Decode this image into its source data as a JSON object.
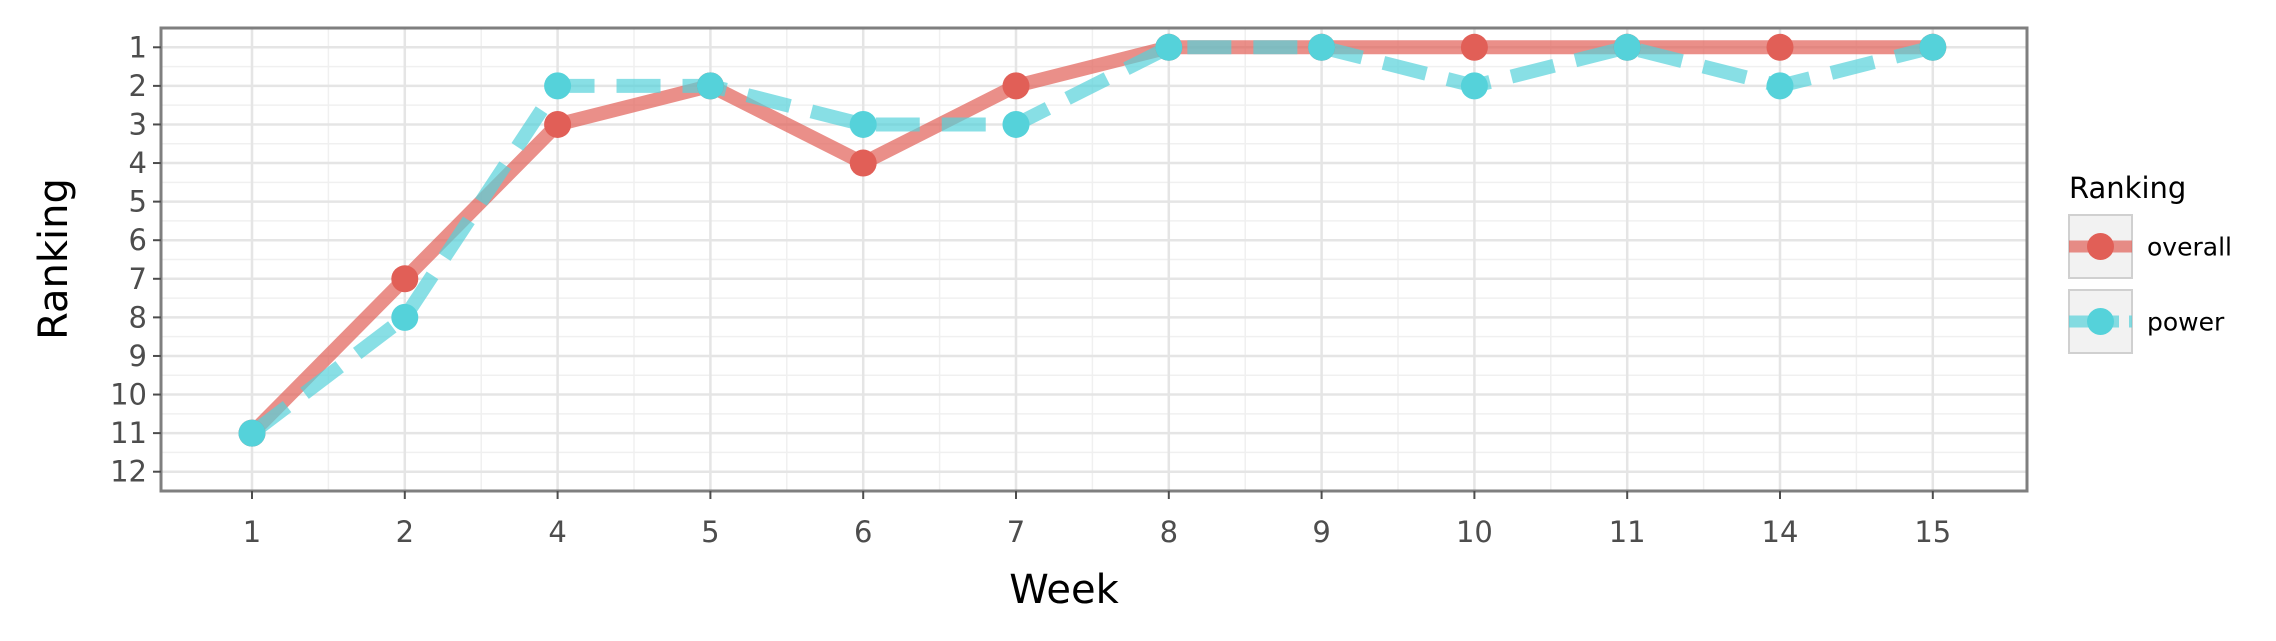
{
  "chart_data": {
    "type": "line",
    "xlabel": "Week",
    "ylabel": "Ranking",
    "categories": [
      "1",
      "2",
      "4",
      "5",
      "6",
      "7",
      "8",
      "9",
      "10",
      "11",
      "14",
      "15"
    ],
    "y_ticks": [
      "1",
      "2",
      "3",
      "4",
      "5",
      "6",
      "7",
      "8",
      "9",
      "10",
      "11",
      "12"
    ],
    "ylim": [
      12.5,
      0.5
    ],
    "y_reversed": true,
    "grid": true,
    "legend": {
      "title": "Ranking",
      "position": "right"
    },
    "series": [
      {
        "name": "overall",
        "color": "#e15f57",
        "line_style": "solid",
        "values": [
          11,
          7,
          3,
          2,
          4,
          2,
          1,
          1,
          1,
          1,
          1,
          1
        ]
      },
      {
        "name": "power",
        "color": "#55d2da",
        "line_style": "dashed",
        "values": [
          11,
          8,
          2,
          2,
          3,
          3,
          1,
          1,
          2,
          1,
          2,
          1
        ]
      }
    ]
  }
}
